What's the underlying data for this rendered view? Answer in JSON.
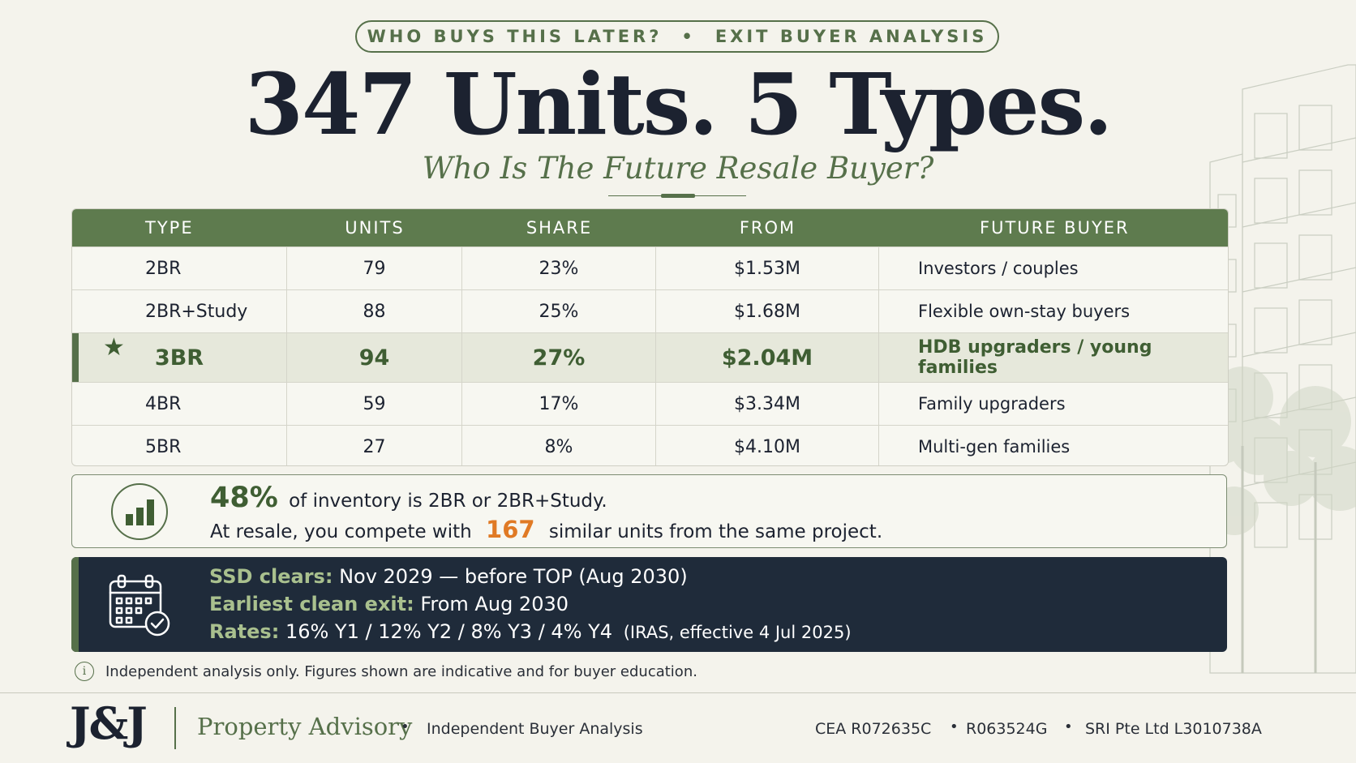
{
  "header": {
    "kicker_left": "WHO BUYS THIS LATER?",
    "kicker_sep": "•",
    "kicker_right": "EXIT BUYER ANALYSIS",
    "title": "347 Units. 5 Types.",
    "subtitle": "Who Is The Future Resale Buyer?"
  },
  "table": {
    "columns": [
      "TYPE",
      "UNITS",
      "SHARE",
      "FROM",
      "FUTURE BUYER"
    ],
    "rows": [
      {
        "type": "2BR",
        "units": "79",
        "share": "23%",
        "from": "$1.53M",
        "buyer": "Investors / couples"
      },
      {
        "type": "2BR+Study",
        "units": "88",
        "share": "25%",
        "from": "$1.68M",
        "buyer": "Flexible own-stay buyers"
      },
      {
        "type": "3BR",
        "units": "94",
        "share": "27%",
        "from": "$2.04M",
        "buyer": "HDB upgraders / young families",
        "highlight": true
      },
      {
        "type": "4BR",
        "units": "59",
        "share": "17%",
        "from": "$3.34M",
        "buyer": "Family upgraders"
      },
      {
        "type": "5BR",
        "units": "27",
        "share": "8%",
        "from": "$4.10M",
        "buyer": "Multi-gen families"
      }
    ],
    "highlight_icon": "star-icon",
    "highlight_symbol": "★"
  },
  "insight": {
    "icon": "bar-chart-icon",
    "pct": "48%",
    "line1_rest": "of inventory is 2BR or 2BR+Study.",
    "line2_pre": "At resale, you compete with",
    "count": "167",
    "line2_post": "similar units from the same project."
  },
  "ssd": {
    "icon": "calendar-check-icon",
    "l1_label": "SSD clears:",
    "l1_value": "Nov 2029 — before TOP (Aug 2030)",
    "l2_label": "Earliest clean exit:",
    "l2_value": "From Aug 2030",
    "l3_label": "Rates:",
    "l3_value": "16% Y1 / 12% Y2 / 8% Y3 / 4% Y4",
    "l3_note": "(IRAS, effective 4 Jul 2025)"
  },
  "disclaimer": {
    "icon": "info-icon",
    "symbol": "i",
    "text": "Independent analysis only. Figures shown are indicative and for buyer education."
  },
  "footer": {
    "logo": "J&J",
    "brand": "Property Advisory",
    "dot": "•",
    "tagline": "Independent Buyer Analysis",
    "cea": "CEA R072635C",
    "reg": "R063524G",
    "license": "SRI Pte Ltd L3010738A"
  },
  "colors": {
    "accent_green": "#56704a",
    "header_green": "#5e7b4e",
    "navy": "#1f2b3a",
    "orange": "#e07a25",
    "background": "#f4f3ec"
  }
}
